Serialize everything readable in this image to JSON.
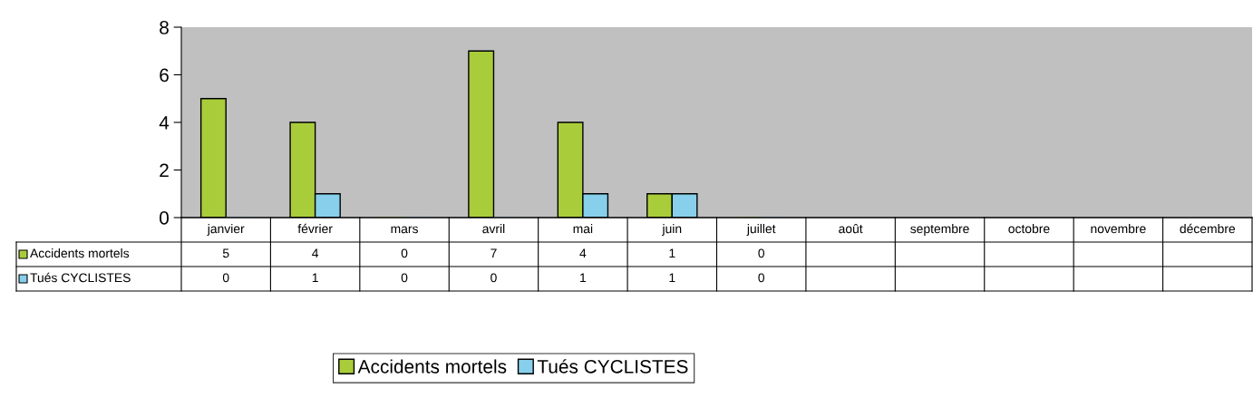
{
  "chart_data": {
    "type": "bar",
    "categories": [
      "janvier",
      "février",
      "mars",
      "avril",
      "mai",
      "juin",
      "juillet",
      "août",
      "septembre",
      "octobre",
      "novembre",
      "décembre"
    ],
    "series": [
      {
        "name": "Accidents mortels",
        "color": "#a9cd3a",
        "values": [
          5,
          4,
          0,
          7,
          4,
          1,
          0,
          null,
          null,
          null,
          null,
          null
        ]
      },
      {
        "name": "Tués CYCLISTES",
        "color": "#87cfeb",
        "values": [
          0,
          1,
          0,
          0,
          1,
          1,
          0,
          null,
          null,
          null,
          null,
          null
        ]
      }
    ],
    "ylim": [
      0,
      8
    ],
    "yticks": [
      0,
      2,
      4,
      6,
      8
    ],
    "grid": false,
    "legend": "bottom",
    "data_labels": true
  }
}
